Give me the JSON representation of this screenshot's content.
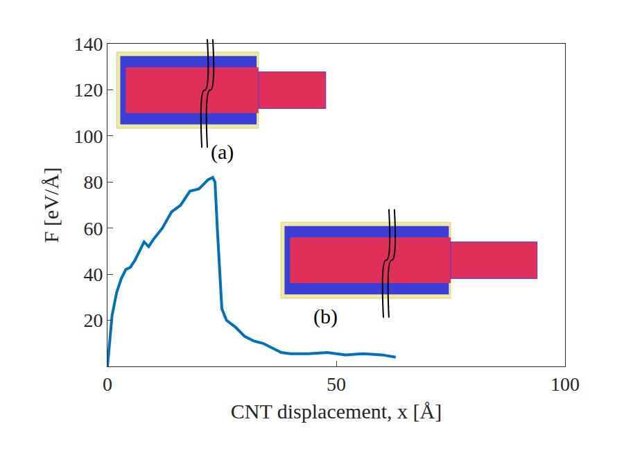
{
  "chart_data": {
    "type": "line",
    "x_label": "CNT displacement, x [Å]",
    "y_label": "F [eV/Å]",
    "annotations": [
      "(a)",
      "(b)"
    ],
    "x": [
      0,
      1,
      2,
      3,
      4,
      5,
      6,
      7,
      8,
      9,
      10,
      12,
      14,
      16,
      18,
      20,
      22,
      23,
      23.5,
      24,
      25,
      26,
      28,
      30,
      32,
      34,
      36,
      38,
      40,
      44,
      48,
      52,
      56,
      60,
      63
    ],
    "values": [
      0,
      22,
      32,
      38,
      42,
      43,
      46,
      50,
      54,
      52,
      55,
      60,
      67,
      70,
      76,
      77,
      81,
      82,
      80,
      60,
      25,
      20,
      17,
      13,
      11,
      10,
      8,
      6,
      5.5,
      5.5,
      6,
      5,
      5.5,
      5,
      4
    ],
    "color": "#0072bd",
    "xlim": [
      0,
      100
    ],
    "xticks": [
      0,
      50,
      100
    ],
    "ylim": [
      0,
      140
    ],
    "yticks": [
      20,
      40,
      60,
      80,
      100,
      120,
      140
    ],
    "grid": false
  }
}
